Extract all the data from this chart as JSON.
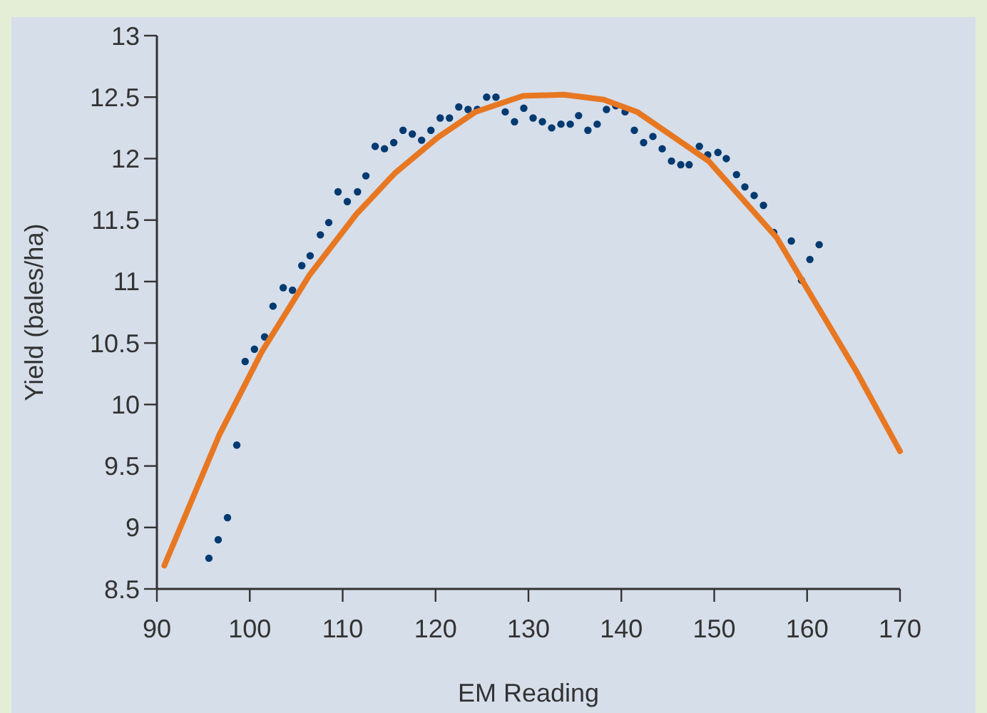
{
  "chart_data": {
    "type": "scatter",
    "xlabel": "EM Reading",
    "ylabel": "Yield (bales/ha)",
    "xlim": [
      90,
      170
    ],
    "xticks": [
      90,
      100,
      110,
      120,
      130,
      140,
      150,
      160,
      170
    ],
    "ylim": [
      8.5,
      13
    ],
    "yticks": [
      8.5,
      9,
      9.5,
      10,
      10.5,
      11,
      11.5,
      12,
      12.5,
      13
    ],
    "grid": false,
    "series": [
      {
        "color": "#003a70",
        "marker": "circle",
        "x": [
          95.6,
          96.6,
          97.6,
          98.6,
          99.5,
          100.5,
          101.6,
          102.5,
          103.6,
          104.6,
          105.6,
          106.5,
          107.6,
          108.5,
          109.5,
          110.5,
          111.6,
          112.5,
          113.5,
          114.5,
          115.5,
          116.5,
          117.5,
          118.5,
          119.5,
          120.5,
          121.5,
          122.5,
          123.5,
          124.5,
          125.5,
          126.5,
          127.5,
          128.5,
          129.5,
          130.5,
          131.5,
          132.5,
          133.5,
          134.5,
          135.4,
          136.4,
          137.4,
          138.4,
          139.4,
          140.4,
          141.4,
          142.4,
          143.4,
          144.4,
          145.4,
          146.4,
          147.3,
          148.4,
          149.3,
          150.4,
          151.3,
          152.4,
          153.3,
          154.3,
          155.3,
          156.4,
          158.3,
          159.4,
          160.3,
          161.3
        ],
        "values": [
          8.75,
          8.9,
          9.08,
          9.67,
          10.35,
          10.45,
          10.55,
          10.8,
          10.95,
          10.93,
          11.13,
          11.21,
          11.38,
          11.48,
          11.73,
          11.65,
          11.73,
          11.86,
          12.1,
          12.08,
          12.13,
          12.23,
          12.2,
          12.15,
          12.23,
          12.33,
          12.33,
          12.42,
          12.4,
          12.4,
          12.5,
          12.5,
          12.38,
          12.3,
          12.41,
          12.33,
          12.3,
          12.25,
          12.28,
          12.28,
          12.35,
          12.23,
          12.28,
          12.4,
          12.43,
          12.38,
          12.23,
          12.13,
          12.18,
          12.08,
          11.98,
          11.95,
          11.95,
          12.1,
          12.03,
          12.05,
          12,
          11.87,
          11.77,
          11.7,
          11.62,
          11.4,
          11.33,
          11.01,
          11.18,
          11.3
        ]
      },
      {
        "type": "line",
        "color": "#e87722",
        "marker": "none",
        "line_style": "solid",
        "x": [
          90.8,
          96.7,
          101.3,
          106.4,
          111.5,
          115.6,
          120.2,
          124.3,
          129.4,
          133.8,
          138.1,
          141.7,
          149.4,
          156.7,
          165.3,
          170
        ],
        "values": [
          8.69,
          9.75,
          10.43,
          11.05,
          11.55,
          11.88,
          12.17,
          12.38,
          12.51,
          12.52,
          12.48,
          12.38,
          11.98,
          11.36,
          10.27,
          9.62
        ]
      }
    ]
  }
}
